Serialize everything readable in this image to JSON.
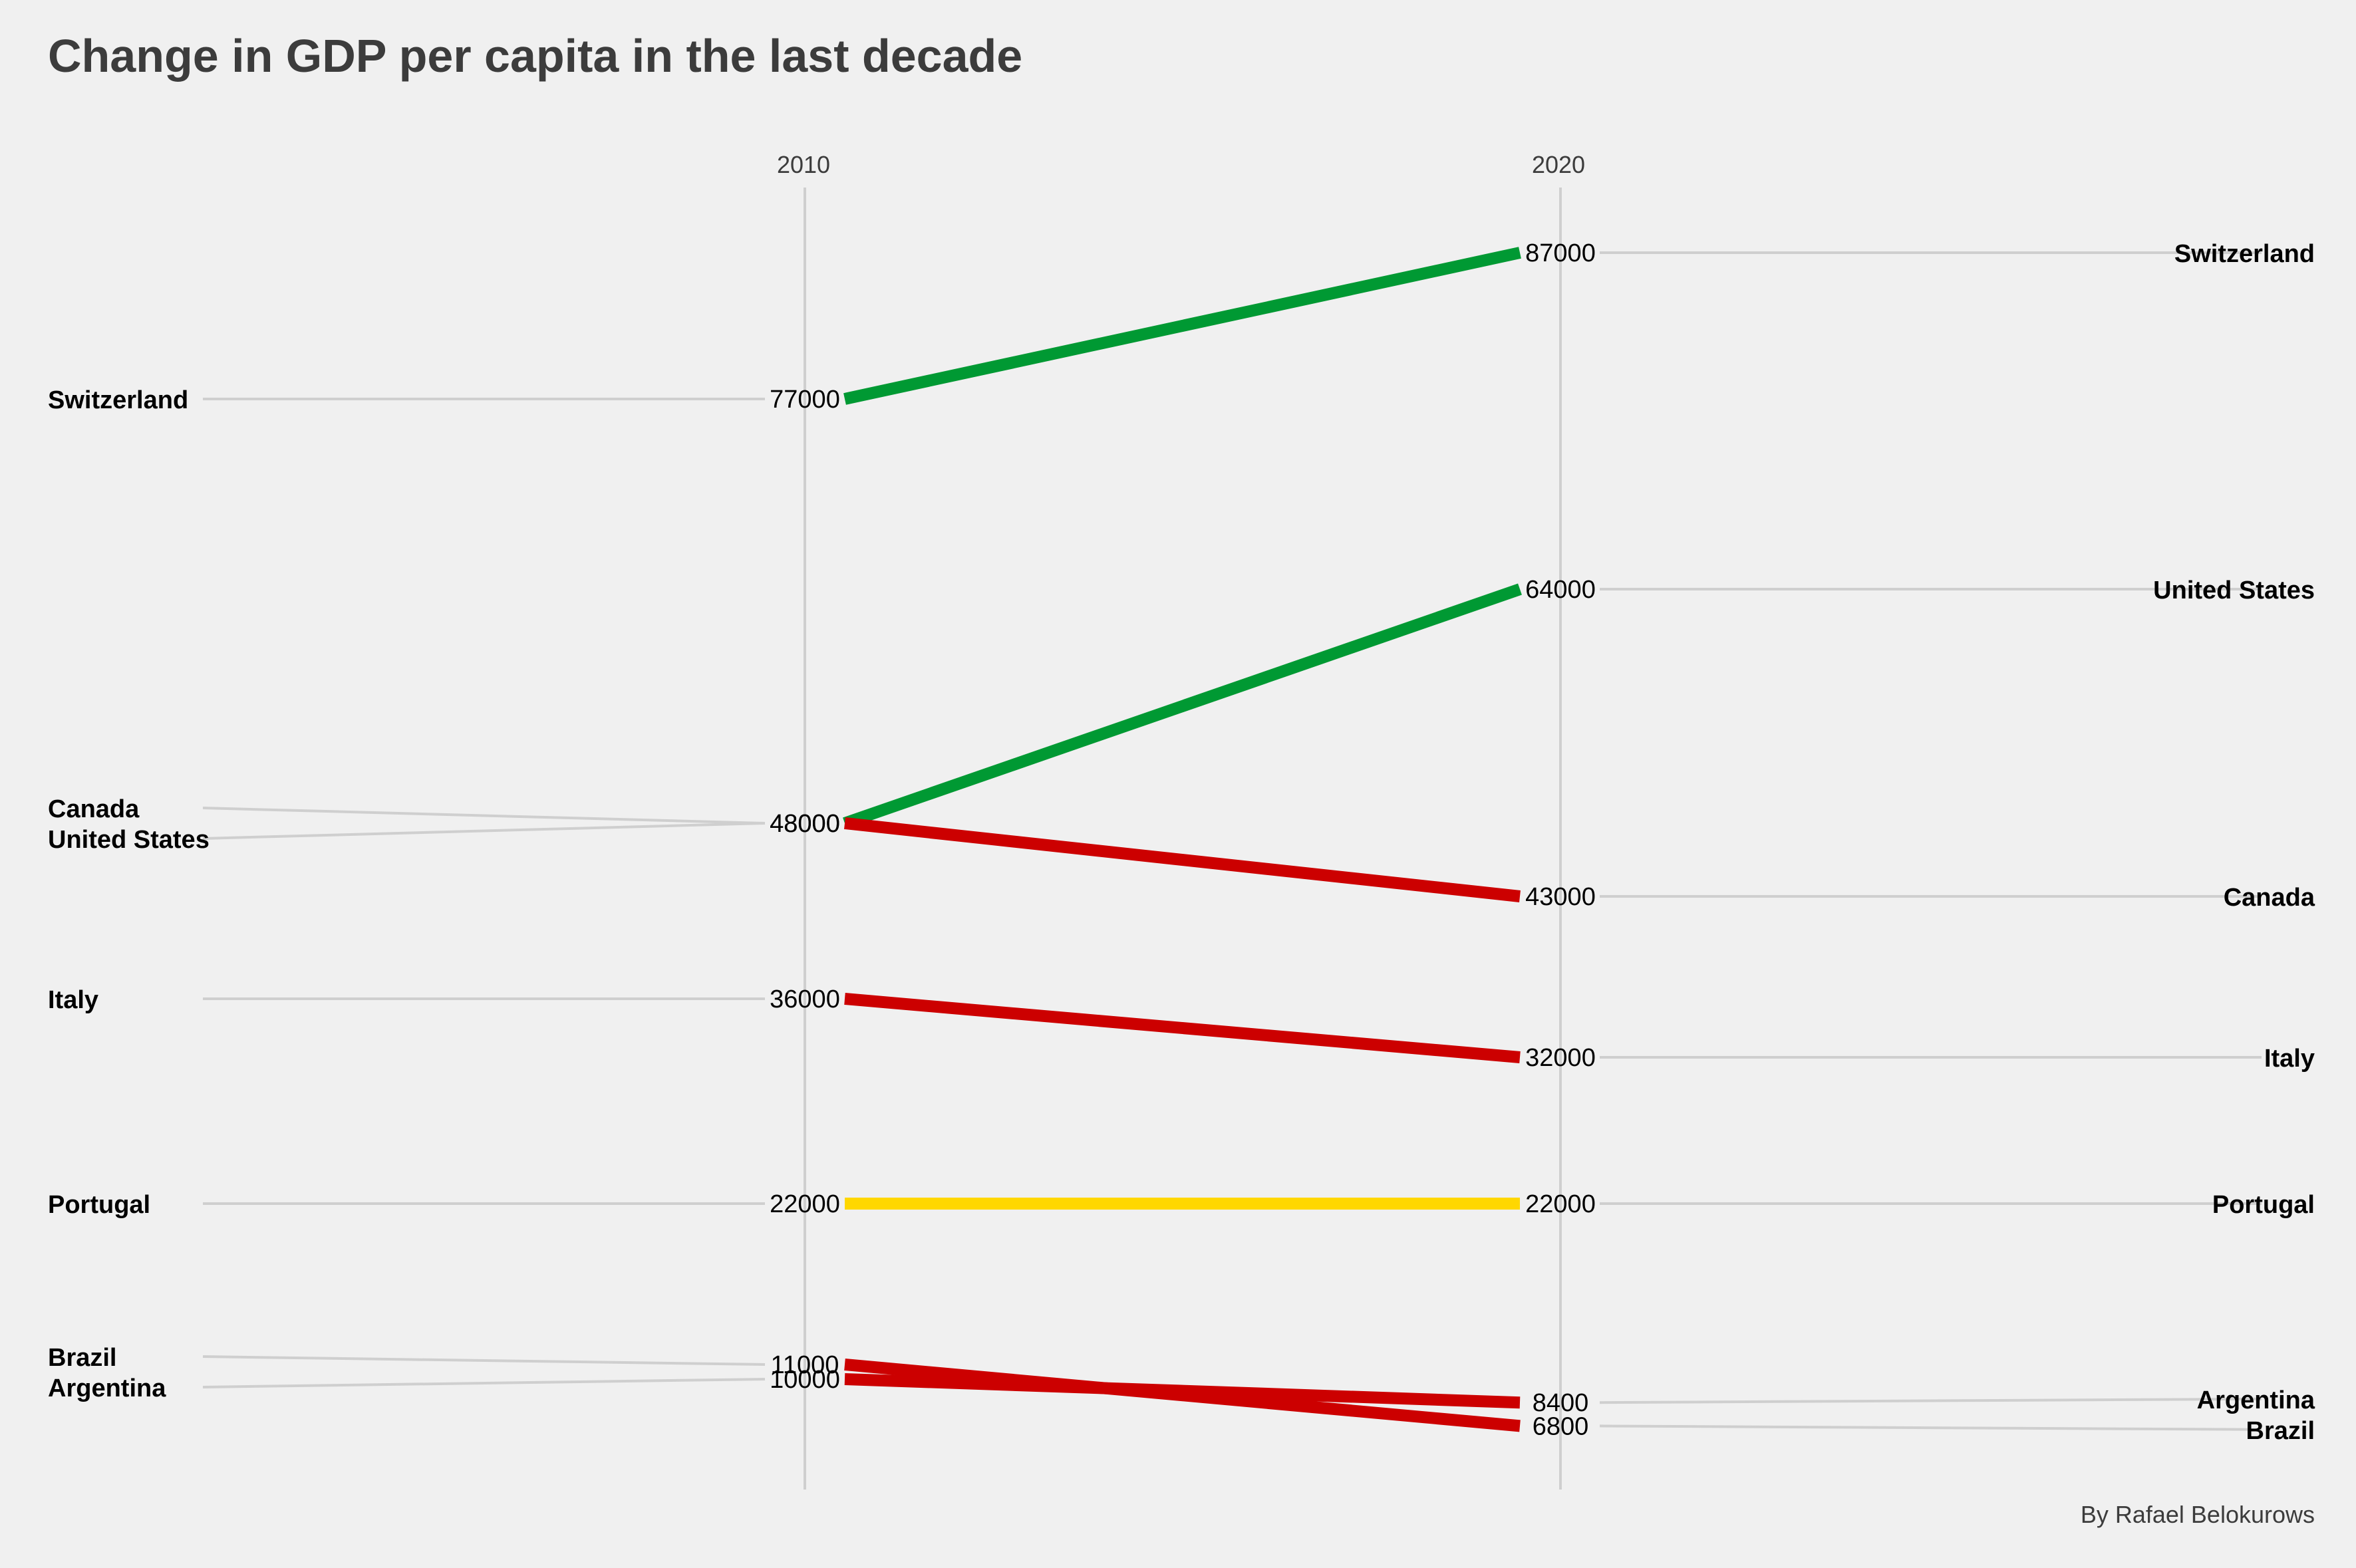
{
  "chart_data": {
    "type": "line",
    "title": "Change in GDP per capita in the last decade",
    "caption": "By Rafael Belokurows",
    "x": [
      "2010",
      "2020"
    ],
    "series": [
      {
        "name": "Switzerland",
        "values": [
          77000,
          87000
        ]
      },
      {
        "name": "United States",
        "values": [
          48000,
          64000
        ]
      },
      {
        "name": "Canada",
        "values": [
          48000,
          43000
        ]
      },
      {
        "name": "Italy",
        "values": [
          36000,
          32000
        ]
      },
      {
        "name": "Portugal",
        "values": [
          22000,
          22000
        ]
      },
      {
        "name": "Brazil",
        "values": [
          11000,
          6800
        ]
      },
      {
        "name": "Argentina",
        "values": [
          10000,
          8400
        ]
      }
    ],
    "colors": {
      "increase": "#009933",
      "decrease": "#cc0000",
      "unchanged": "#ffd700",
      "guide": "#cfcfcf"
    },
    "left_label_order": [
      "Switzerland",
      "Canada",
      "United States",
      "Italy",
      "Portugal",
      "Brazil",
      "Argentina"
    ],
    "right_label_order": [
      "Switzerland",
      "United States",
      "Canada",
      "Italy",
      "Portugal",
      "Argentina",
      "Brazil"
    ],
    "grid": false,
    "legend": "none"
  }
}
